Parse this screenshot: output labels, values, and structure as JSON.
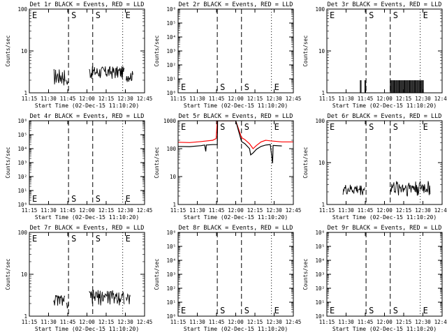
{
  "colors": {
    "events": "#000000",
    "lld": "#ff0000",
    "background": "#ffffff"
  },
  "time_ticks": [
    "11:15",
    "11:30",
    "11:45",
    "12:00",
    "12:15",
    "12:30",
    "12:45"
  ],
  "marker_labels": {
    "E": "E",
    "S": "S"
  },
  "chart_data": [
    {
      "type": "line",
      "scale": "log",
      "title": "Det 1r BLACK = Events, RED = LLD",
      "xlabel": "Start Time (02-Dec-15 11:10:20)",
      "ylabel": "Counts/sec",
      "xlim_min": [
        0,
        100
      ],
      "ylim": [
        1,
        100
      ],
      "ytick_labels": [
        "1",
        "10",
        "100"
      ],
      "markers": [
        {
          "label": "E",
          "t": 0
        },
        {
          "label": "S",
          "t": 34
        },
        {
          "label": "S",
          "t": 55
        },
        {
          "label": "E",
          "t": 81
        }
      ],
      "label_pos": "top",
      "series": [
        {
          "type": "noise",
          "color": "events",
          "segments": [
            {
              "t0": 21,
              "t1": 31,
              "level": 2.6,
              "spread": 0.45
            },
            {
              "t0": 32,
              "t1": 34,
              "level": 1.8,
              "spread": 0.2
            },
            {
              "t0": 52,
              "t1": 83,
              "level": 3.2,
              "spread": 0.35
            },
            {
              "t0": 84,
              "t1": 90,
              "level": 2.6,
              "spread": 0.3
            }
          ]
        }
      ]
    },
    {
      "type": "line",
      "scale": "log",
      "title": "Det 2r BLACK = Events, RED = LLD",
      "xlabel": "Start Time (02-Dec-15 11:10:20)",
      "ylabel": "Counts/sec",
      "xlim_min": [
        0,
        100
      ],
      "ylim": [
        1,
        1000000
      ],
      "ytick_labels": [
        "10⁰",
        "10¹",
        "10²",
        "10³",
        "10⁴",
        "10⁵",
        "10⁶"
      ],
      "markers": [
        {
          "label": "E",
          "t": 0
        },
        {
          "label": "S",
          "t": 34
        },
        {
          "label": "S",
          "t": 55
        },
        {
          "label": "E",
          "t": 81
        }
      ],
      "label_pos": "bottom",
      "series": []
    },
    {
      "type": "line",
      "scale": "log",
      "title": "Det 3r BLACK = Events, RED = LLD",
      "xlabel": "Start Time (02-Dec-15 11:10:20)",
      "ylabel": "Counts/sec",
      "xlim_min": [
        0,
        100
      ],
      "ylim": [
        1,
        100
      ],
      "ytick_labels": [
        "1",
        "10",
        "100"
      ],
      "markers": [
        {
          "label": "E",
          "t": 0
        },
        {
          "label": "S",
          "t": 34
        },
        {
          "label": "S",
          "t": 55
        },
        {
          "label": "E",
          "t": 81
        }
      ],
      "label_pos": "top",
      "series": [
        {
          "type": "spikes",
          "color": "events",
          "base": 1,
          "top": 2,
          "segments": [
            {
              "t0": 29,
              "t1": 30
            },
            {
              "t0": 33,
              "t1": 34
            },
            {
              "t0": 55,
              "t1": 84
            }
          ]
        }
      ]
    },
    {
      "type": "line",
      "scale": "log",
      "title": "Det 4r BLACK = Events, RED = LLD",
      "xlabel": "Start Time (02-Dec-15 11:10:20)",
      "ylabel": "Counts/sec",
      "xlim_min": [
        0,
        100
      ],
      "ylim": [
        1,
        1000000
      ],
      "ytick_labels": [
        "10⁰",
        "10¹",
        "10²",
        "10³",
        "10⁴",
        "10⁵",
        "10⁶"
      ],
      "markers": [
        {
          "label": "E",
          "t": 0
        },
        {
          "label": "S",
          "t": 34
        },
        {
          "label": "S",
          "t": 55
        },
        {
          "label": "E",
          "t": 81
        }
      ],
      "label_pos": "bottom",
      "series": []
    },
    {
      "type": "line",
      "scale": "log",
      "title": "Det 5r BLACK = Events, RED = LLD",
      "xlabel": "Start Time (02-Dec-15 11:10:20)",
      "ylabel": "Counts/sec",
      "xlim_min": [
        0,
        100
      ],
      "ylim": [
        1,
        1000
      ],
      "ytick_labels": [
        "1",
        "10",
        "100",
        "1000"
      ],
      "markers": [
        {
          "label": "E",
          "t": 0
        },
        {
          "label": "S",
          "t": 34
        },
        {
          "label": "S",
          "t": 55
        },
        {
          "label": "E",
          "t": 81
        }
      ],
      "label_pos": "top",
      "series": [
        {
          "type": "line",
          "color": "lld",
          "points": [
            [
              0,
              170
            ],
            [
              10,
              165
            ],
            [
              20,
              180
            ],
            [
              30,
              200
            ],
            [
              33,
              230
            ],
            [
              34,
              1000
            ],
            [
              38,
              1000
            ],
            [
              45,
              1000
            ],
            [
              50,
              1000
            ],
            [
              55,
              250
            ],
            [
              58,
              210
            ],
            [
              62,
              150
            ],
            [
              65,
              100
            ],
            [
              68,
              130
            ],
            [
              72,
              175
            ],
            [
              76,
              200
            ],
            [
              80,
              190
            ],
            [
              90,
              175
            ],
            [
              100,
              175
            ]
          ]
        },
        {
          "type": "line",
          "color": "events",
          "points": [
            [
              0,
              120
            ],
            [
              10,
              118
            ],
            [
              20,
              128
            ],
            [
              23,
              135
            ],
            [
              24,
              80
            ],
            [
              24.5,
              135
            ],
            [
              30,
              140
            ],
            [
              34,
              140
            ],
            [
              34.3,
              1000
            ],
            [
              38,
              1000
            ],
            [
              45,
              1000
            ],
            [
              50,
              1000
            ],
            [
              55,
              180
            ],
            [
              58,
              150
            ],
            [
              62,
              100
            ],
            [
              63,
              60
            ],
            [
              65,
              70
            ],
            [
              68,
              95
            ],
            [
              72,
              120
            ],
            [
              76,
              135
            ],
            [
              80,
              140
            ],
            [
              82,
              30
            ],
            [
              82.4,
              130
            ],
            [
              90,
              125
            ]
          ]
        }
      ]
    },
    {
      "type": "line",
      "scale": "log",
      "title": "Det 6r BLACK = Events, RED = LLD",
      "xlabel": "Start Time (02-Dec-15 11:10:20)",
      "ylabel": "Counts/sec",
      "xlim_min": [
        0,
        100
      ],
      "ylim": [
        1,
        100
      ],
      "ytick_labels": [
        "1",
        "10",
        "100"
      ],
      "markers": [
        {
          "label": "E",
          "t": 0
        },
        {
          "label": "S",
          "t": 34
        },
        {
          "label": "S",
          "t": 55
        },
        {
          "label": "E",
          "t": 81
        }
      ],
      "label_pos": "top",
      "series": [
        {
          "type": "noise",
          "color": "events",
          "segments": [
            {
              "t0": 14,
              "t1": 33,
              "level": 2.3,
              "spread": 0.3
            },
            {
              "t0": 55,
              "t1": 90,
              "level": 2.6,
              "spread": 0.4
            }
          ]
        }
      ]
    },
    {
      "type": "line",
      "scale": "log",
      "title": "Det 7r BLACK = Events, RED = LLD",
      "xlabel": "Start Time (02-Dec-15 11:10:20)",
      "ylabel": "Counts/sec",
      "xlim_min": [
        0,
        100
      ],
      "ylim": [
        1,
        100
      ],
      "ytick_labels": [
        "1",
        "10",
        "100"
      ],
      "markers": [
        {
          "label": "E",
          "t": 0
        },
        {
          "label": "S",
          "t": 34
        },
        {
          "label": "S",
          "t": 55
        },
        {
          "label": "E",
          "t": 81
        }
      ],
      "label_pos": "top",
      "series": [
        {
          "type": "noise",
          "color": "events",
          "segments": [
            {
              "t0": 21,
              "t1": 31,
              "level": 2.5,
              "spread": 0.3
            },
            {
              "t0": 32,
              "t1": 34,
              "level": 1.8,
              "spread": 0.2
            },
            {
              "t0": 52,
              "t1": 83,
              "level": 3.0,
              "spread": 0.4
            },
            {
              "t0": 84,
              "t1": 88,
              "level": 2.6,
              "spread": 0.3
            }
          ]
        }
      ]
    },
    {
      "type": "line",
      "scale": "log",
      "title": "Det 8r BLACK = Events, RED = LLD",
      "xlabel": "Start Time (02-Dec-15 11:10:20)",
      "ylabel": "Counts/sec",
      "xlim_min": [
        0,
        100
      ],
      "ylim": [
        1,
        1000000
      ],
      "ytick_labels": [
        "10⁰",
        "10¹",
        "10²",
        "10³",
        "10⁴",
        "10⁵",
        "10⁶"
      ],
      "markers": [
        {
          "label": "E",
          "t": 0
        },
        {
          "label": "S",
          "t": 34
        },
        {
          "label": "S",
          "t": 55
        },
        {
          "label": "E",
          "t": 81
        }
      ],
      "label_pos": "bottom",
      "series": []
    },
    {
      "type": "line",
      "scale": "log",
      "title": "Det 9r BLACK = Events, RED = LLD",
      "xlabel": "Start Time (02-Dec-15 11:10:20)",
      "ylabel": "Counts/sec",
      "xlim_min": [
        0,
        100
      ],
      "ylim": [
        1,
        1000000
      ],
      "ytick_labels": [
        "10⁰",
        "10¹",
        "10²",
        "10³",
        "10⁴",
        "10⁵",
        "10⁶"
      ],
      "markers": [
        {
          "label": "E",
          "t": 0
        },
        {
          "label": "S",
          "t": 34
        },
        {
          "label": "S",
          "t": 55
        },
        {
          "label": "E",
          "t": 81
        }
      ],
      "label_pos": "bottom",
      "series": []
    }
  ]
}
